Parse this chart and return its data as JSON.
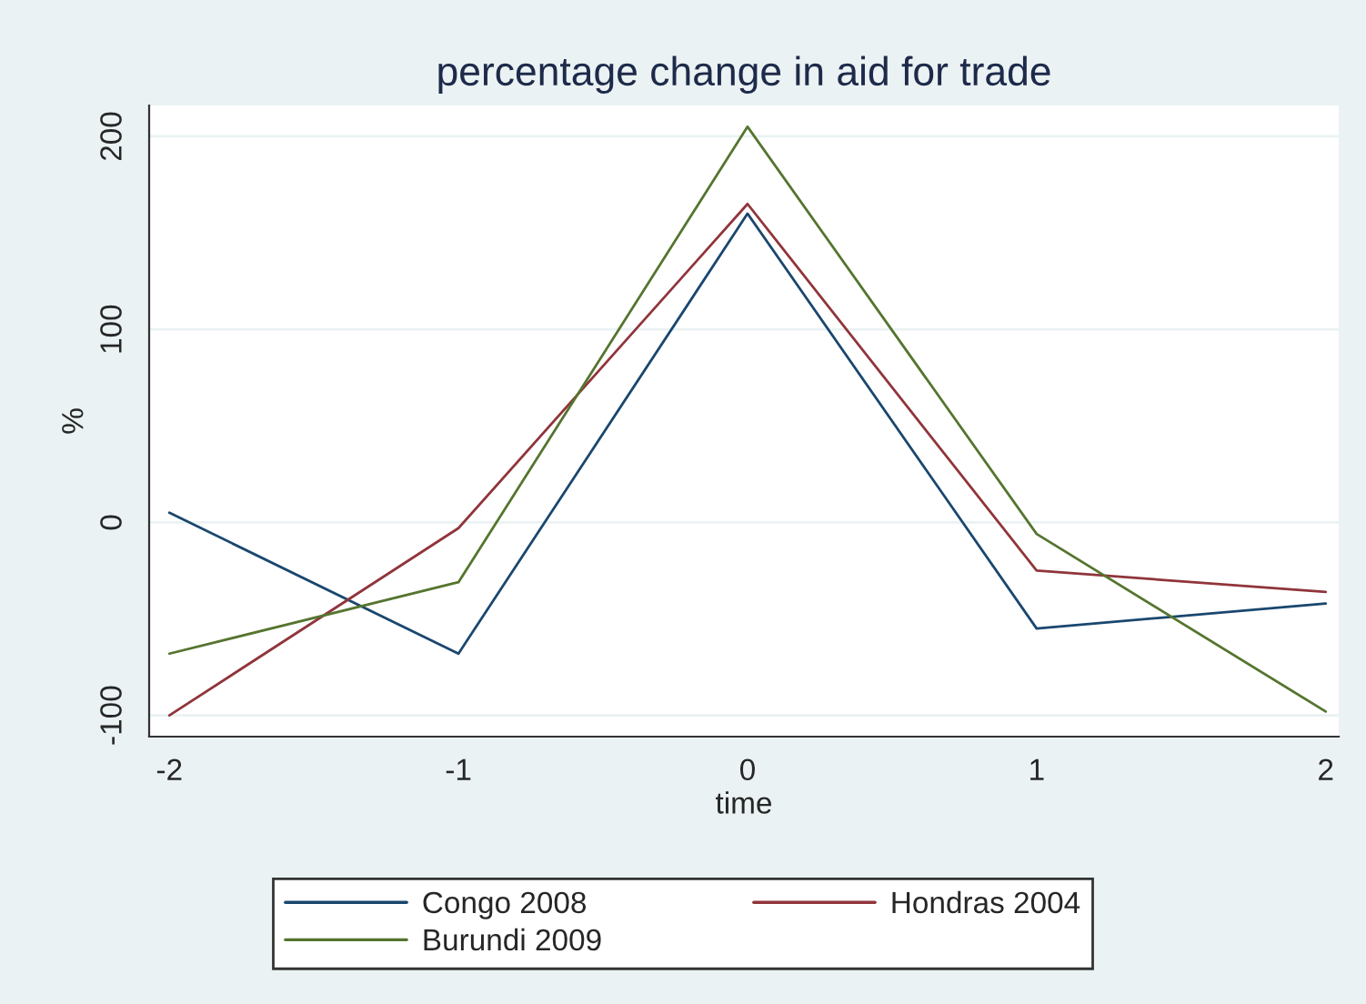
{
  "chart_data": {
    "type": "line",
    "title": "percentage change in aid for trade",
    "xlabel": "time",
    "ylabel": "%",
    "x": [
      -2,
      -1,
      0,
      1,
      2
    ],
    "series": [
      {
        "name": "Congo 2008",
        "color": "#1a476f",
        "values": [
          5,
          -68,
          160,
          -55,
          -42
        ]
      },
      {
        "name": "Hondras 2004",
        "color": "#90353b",
        "values": [
          -100,
          -3,
          165,
          -25,
          -36
        ]
      },
      {
        "name": "Burundi 2009",
        "color": "#55752f",
        "values": [
          -68,
          -31,
          205,
          -6,
          -98
        ]
      }
    ],
    "xlim": [
      -2.07,
      2.045
    ],
    "ylim": [
      -111,
      216
    ],
    "xticks": [
      -2,
      -1,
      0,
      1,
      2
    ],
    "yticks": [
      -100,
      0,
      100,
      200
    ],
    "grid": "y",
    "legend": "bottom",
    "marker": "none",
    "line_style": "solid"
  }
}
